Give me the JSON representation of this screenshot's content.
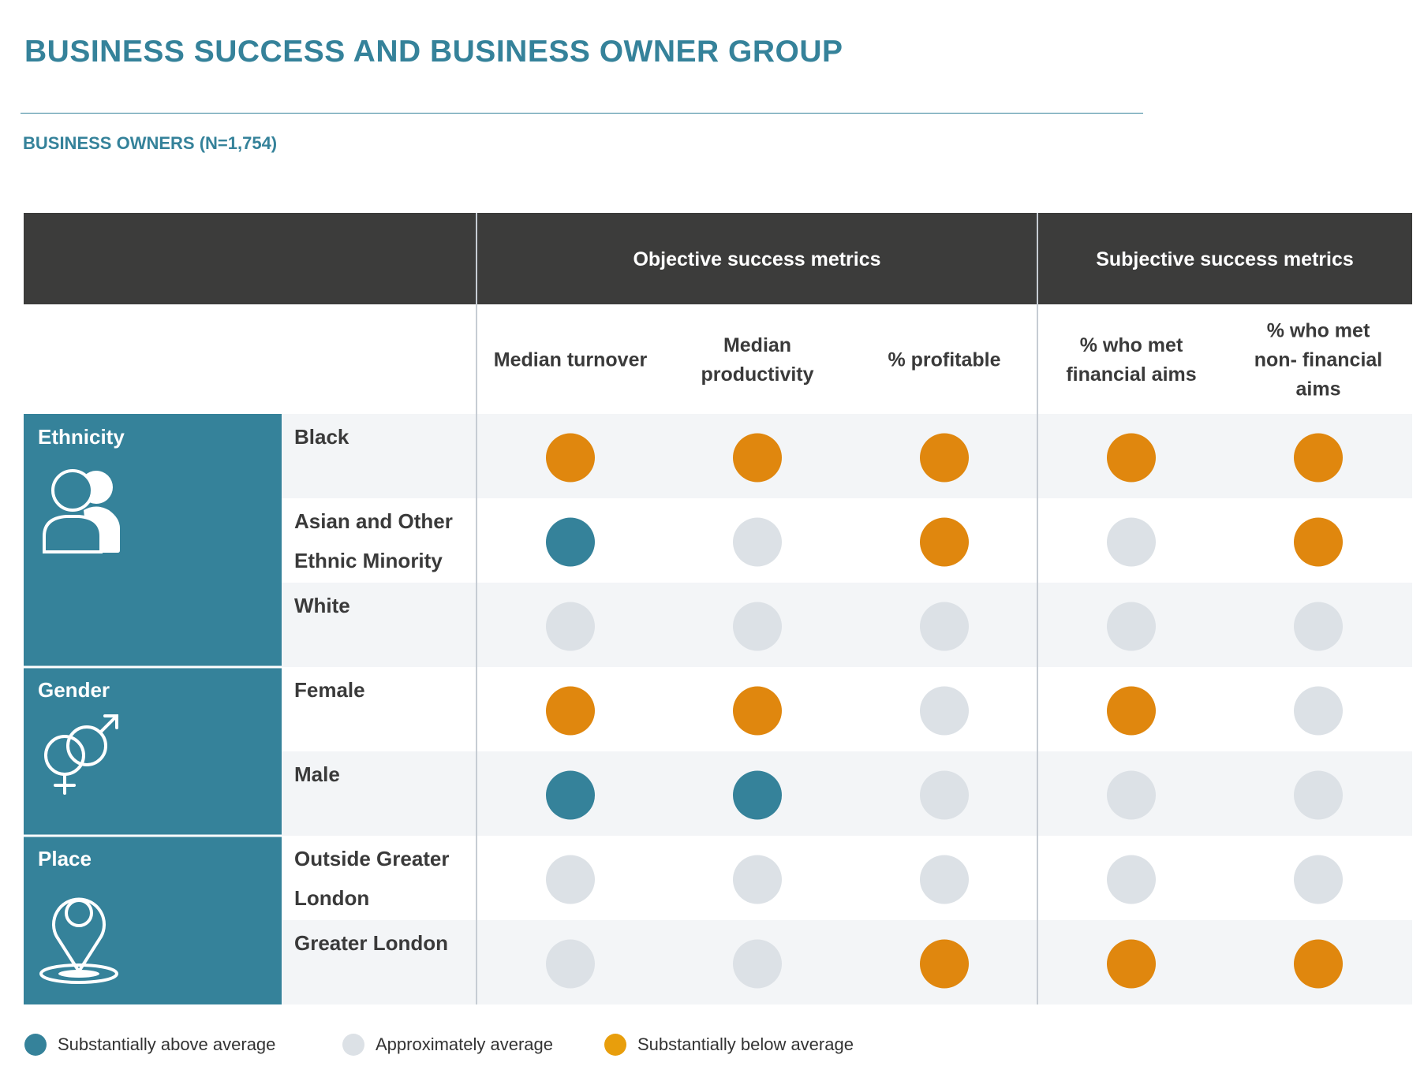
{
  "title": "BUSINESS SUCCESS AND BUSINESS OWNER GROUP",
  "subtitle": "BUSINESS OWNERS (N=1,754)",
  "colors": {
    "header_bg": "#3c3c3b",
    "teal": "#35829a",
    "above": "#35829a",
    "average": "#dce1e6",
    "below": "#e0870e",
    "legend_below": "#e89e0c",
    "stripe": "#f3f5f7"
  },
  "header_groups": [
    {
      "label": "Objective success metrics"
    },
    {
      "label": "Subjective success metrics"
    }
  ],
  "columns": [
    {
      "label_lines": [
        "Median turnover"
      ]
    },
    {
      "label_lines": [
        "Median",
        "productivity"
      ]
    },
    {
      "label_lines": [
        "% profitable"
      ]
    },
    {
      "label_lines": [
        "% who met",
        "financial aims"
      ]
    },
    {
      "label_lines": [
        "% who met",
        "non- financial",
        "aims"
      ]
    }
  ],
  "groups": [
    {
      "label": "Ethnicity",
      "icon": "people-icon",
      "row_count": 3
    },
    {
      "label": "Gender",
      "icon": "gender-symbols-icon",
      "row_count": 2
    },
    {
      "label": "Place",
      "icon": "location-pin-icon",
      "row_count": 2
    }
  ],
  "legend": [
    {
      "status": "above",
      "label": "Substantially above average"
    },
    {
      "status": "average",
      "label": "Approximately average"
    },
    {
      "status": "below",
      "label": "Substantially below average"
    }
  ],
  "chart_data": {
    "type": "table",
    "columns": [
      "Median turnover",
      "Median productivity",
      "% profitable",
      "% who met financial aims",
      "% who met non- financial aims"
    ],
    "rows": [
      {
        "group": "Ethnicity",
        "label_lines": [
          "Black"
        ],
        "values": [
          "below",
          "below",
          "below",
          "below",
          "below"
        ]
      },
      {
        "group": "Ethnicity",
        "label_lines": [
          "Asian and Other",
          "Ethnic Minority"
        ],
        "values": [
          "above",
          "average",
          "below",
          "average",
          "below"
        ]
      },
      {
        "group": "Ethnicity",
        "label_lines": [
          "White"
        ],
        "values": [
          "average",
          "average",
          "average",
          "average",
          "average"
        ]
      },
      {
        "group": "Gender",
        "label_lines": [
          "Female"
        ],
        "values": [
          "below",
          "below",
          "average",
          "below",
          "average"
        ]
      },
      {
        "group": "Gender",
        "label_lines": [
          "Male"
        ],
        "values": [
          "above",
          "above",
          "average",
          "average",
          "average"
        ]
      },
      {
        "group": "Place",
        "label_lines": [
          "Outside Greater",
          "London"
        ],
        "values": [
          "average",
          "average",
          "average",
          "average",
          "average"
        ]
      },
      {
        "group": "Place",
        "label_lines": [
          "Greater London"
        ],
        "values": [
          "average",
          "average",
          "below",
          "below",
          "below"
        ]
      }
    ]
  }
}
